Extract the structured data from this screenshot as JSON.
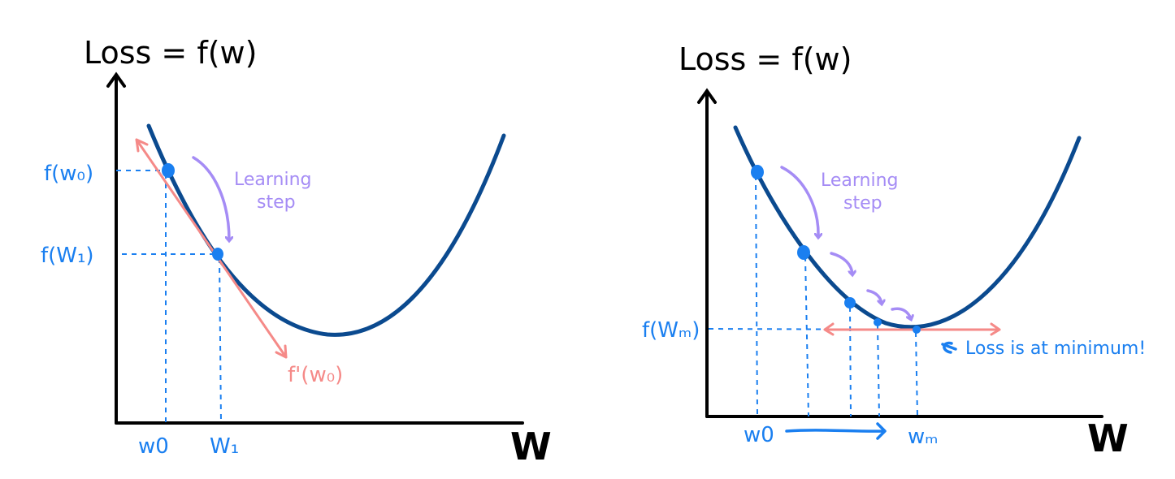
{
  "left_panel": {
    "y_axis_title": "Loss = f(w)",
    "x_axis_title": "W",
    "y_labels": {
      "f_w0": "f(w₀)",
      "f_w1": "f(W₁)"
    },
    "x_labels": {
      "w0": "w0",
      "w1": "W₁"
    },
    "step_label_line1": "Learning",
    "step_label_line2": "step",
    "derivative_label": "f'(w₀)"
  },
  "right_panel": {
    "y_axis_title": "Loss = f(w)",
    "x_axis_title": "W",
    "y_label_min": "f(Wₘ)",
    "x_labels": {
      "w0": "w0",
      "wm": "wₘ"
    },
    "step_label_line1": "Learning",
    "step_label_line2": "step",
    "minimum_note": "Loss is at minimum!"
  },
  "colors": {
    "curve": "#0b4a8f",
    "points_and_guides": "#1a7ff0",
    "learning_step": "#a58cf5",
    "gradient": "#f58a88",
    "axes": "#000000"
  }
}
